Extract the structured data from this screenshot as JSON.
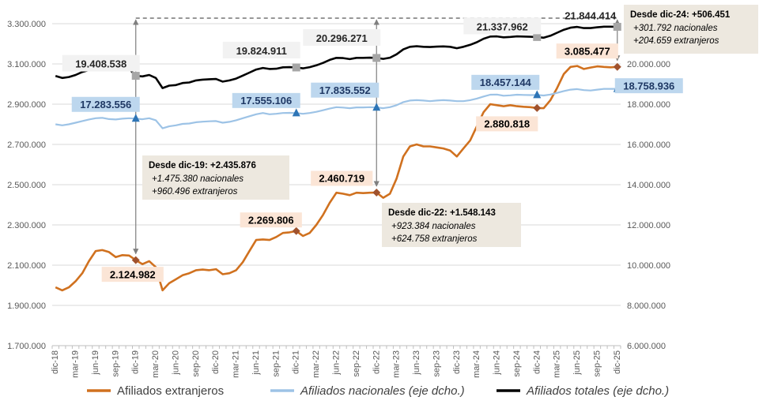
{
  "chart_data": {
    "type": "line",
    "x": [
      "dic-18",
      "ene-19",
      "feb-19",
      "mar-19",
      "abr-19",
      "may-19",
      "jun-19",
      "jul-19",
      "ago-19",
      "sep-19",
      "oct-19",
      "nov-19",
      "dic-19",
      "ene-20",
      "feb-20",
      "mar-20",
      "abr-20",
      "may-20",
      "jun-20",
      "jul-20",
      "ago-20",
      "sep-20",
      "oct-20",
      "nov-20",
      "dic-20",
      "ene-21",
      "feb-21",
      "mar-21",
      "abr-21",
      "may-21",
      "jun-21",
      "jul-21",
      "ago-21",
      "sep-21",
      "oct-21",
      "nov-21",
      "dic-21",
      "ene-22",
      "feb-22",
      "mar-22",
      "abr-22",
      "may-22",
      "jun-22",
      "jul-22",
      "ago-22",
      "sep-22",
      "oct-22",
      "nov-22",
      "dic-22",
      "ene-23",
      "feb-23",
      "mar-23",
      "abr-23",
      "may-23",
      "jun-23",
      "jul-23",
      "ago-23",
      "sep-23",
      "oct-23",
      "nov-23",
      "dic-23",
      "ene-24",
      "feb-24",
      "mar-24",
      "abr-24",
      "may-24",
      "jun-24",
      "jul-24",
      "ago-24",
      "sep-24",
      "oct-24",
      "nov-24",
      "dic-24",
      "ene-25",
      "feb-25",
      "mar-25",
      "abr-25",
      "may-25",
      "jun-25",
      "jul-25",
      "ago-25",
      "sep-25",
      "oct-25",
      "nov-25",
      "dic-25"
    ],
    "x_tick_labels": [
      "dic-18",
      "mar-19",
      "jun-19",
      "sep-19",
      "dic-19",
      "mar-20",
      "jun-20",
      "sep-20",
      "dic-20",
      "mar-21",
      "jun-21",
      "sep-21",
      "dic-21",
      "mar-22",
      "jun-22",
      "sep-22",
      "dic-22",
      "mar-23",
      "jun-23",
      "sep-23",
      "dic-23",
      "mar-24",
      "jun-24",
      "sep-24",
      "dic-24",
      "mar-25",
      "jun-25",
      "sep-25",
      "dic-25"
    ],
    "y_left": {
      "min": 1700000,
      "max": 3300000,
      "ticks": [
        "1.700.000",
        "1.900.000",
        "2.100.000",
        "2.300.000",
        "2.500.000",
        "2.700.000",
        "2.900.000",
        "3.100.000",
        "3.300.000"
      ]
    },
    "y_right": {
      "min": 6000000,
      "max": 22000000,
      "ticks": [
        "6.000.000",
        "8.000.000",
        "10.000.000",
        "12.000.000",
        "14.000.000",
        "16.000.000",
        "18.000.000",
        "20.000.000"
      ]
    },
    "grid": true,
    "legend_position": "bottom",
    "series": [
      {
        "name": "Afiliados extranjeros",
        "axis": "left",
        "color": "#d0711f",
        "values": [
          1990000,
          1975000,
          1990000,
          2020000,
          2060000,
          2120000,
          2170000,
          2175000,
          2165000,
          2140000,
          2150000,
          2148000,
          2124982,
          2105000,
          2120000,
          2090000,
          1975000,
          2010000,
          2030000,
          2050000,
          2060000,
          2075000,
          2078000,
          2075000,
          2080000,
          2055000,
          2060000,
          2075000,
          2115000,
          2170000,
          2225000,
          2228000,
          2225000,
          2240000,
          2260000,
          2263000,
          2269806,
          2245000,
          2260000,
          2300000,
          2350000,
          2410000,
          2460000,
          2455000,
          2448000,
          2460000,
          2458000,
          2460000,
          2460719,
          2435000,
          2455000,
          2530000,
          2640000,
          2690000,
          2700000,
          2690000,
          2690000,
          2685000,
          2680000,
          2670000,
          2640000,
          2680000,
          2720000,
          2790000,
          2860000,
          2900000,
          2895000,
          2890000,
          2895000,
          2890000,
          2887000,
          2885000,
          2880818,
          2880000,
          2920000,
          2980000,
          3050000,
          3085000,
          3090000,
          3075000,
          3082000,
          3088000,
          3085000,
          3083000,
          3085477
        ]
      },
      {
        "name": "Afiliados nacionales (eje dcho.)",
        "axis": "right",
        "color": "#9dc3e6",
        "values": [
          17000000,
          16950000,
          17000000,
          17080000,
          17160000,
          17240000,
          17300000,
          17320000,
          17260000,
          17240000,
          17280000,
          17300000,
          17283556,
          17250000,
          17300000,
          17200000,
          16800000,
          16900000,
          16950000,
          17020000,
          17040000,
          17100000,
          17130000,
          17150000,
          17160000,
          17080000,
          17120000,
          17200000,
          17300000,
          17400000,
          17500000,
          17560000,
          17500000,
          17520000,
          17560000,
          17570000,
          17555106,
          17520000,
          17560000,
          17620000,
          17700000,
          17780000,
          17850000,
          17830000,
          17800000,
          17840000,
          17840000,
          17850000,
          17835552,
          17800000,
          17850000,
          17950000,
          18100000,
          18180000,
          18200000,
          18180000,
          18150000,
          18180000,
          18200000,
          18180000,
          18150000,
          18150000,
          18200000,
          18280000,
          18380000,
          18470000,
          18480000,
          18420000,
          18440000,
          18470000,
          18460000,
          18450000,
          18457144,
          18430000,
          18480000,
          18560000,
          18650000,
          18720000,
          18750000,
          18700000,
          18680000,
          18720000,
          18760000,
          18760000,
          18758936
        ]
      },
      {
        "name": "Afiliados totales (eje dcho.)",
        "axis": "right",
        "color": "#000000",
        "values": [
          19400000,
          19300000,
          19350000,
          19450000,
          19600000,
          19700000,
          19800000,
          19820000,
          19750000,
          19700000,
          19750000,
          19760000,
          19408538,
          19380000,
          19450000,
          19300000,
          18800000,
          18920000,
          18950000,
          19050000,
          19080000,
          19180000,
          19220000,
          19240000,
          19250000,
          19120000,
          19180000,
          19270000,
          19420000,
          19570000,
          19720000,
          19800000,
          19750000,
          19760000,
          19830000,
          19840000,
          19824911,
          19780000,
          19840000,
          19930000,
          20050000,
          20200000,
          20300000,
          20290000,
          20240000,
          20300000,
          20300000,
          20310000,
          20296271,
          20250000,
          20310000,
          20480000,
          20720000,
          20850000,
          20880000,
          20850000,
          20840000,
          20860000,
          20870000,
          20850000,
          20780000,
          20850000,
          20950000,
          21080000,
          21250000,
          21360000,
          21370000,
          21320000,
          21340000,
          21370000,
          21360000,
          21350000,
          21337962,
          21300000,
          21400000,
          21550000,
          21700000,
          21800000,
          21840000,
          21780000,
          21780000,
          21820000,
          21850000,
          21850000,
          21844414
        ]
      }
    ],
    "data_labels": [
      {
        "series": 0,
        "index": 12,
        "text": "2.124.982"
      },
      {
        "series": 0,
        "index": 36,
        "text": "2.269.806"
      },
      {
        "series": 0,
        "index": 48,
        "text": "2.460.719"
      },
      {
        "series": 0,
        "index": 72,
        "text": "2.880.818"
      },
      {
        "series": 0,
        "index": 84,
        "text": "3.085.477"
      },
      {
        "series": 1,
        "index": 12,
        "text": "17.283.556"
      },
      {
        "series": 1,
        "index": 36,
        "text": "17.555.106"
      },
      {
        "series": 1,
        "index": 48,
        "text": "17.835.552"
      },
      {
        "series": 1,
        "index": 72,
        "text": "18.457.144"
      },
      {
        "series": 1,
        "index": 84,
        "text": "18.758.936"
      },
      {
        "series": 2,
        "index": 12,
        "text": "19.408.538"
      },
      {
        "series": 2,
        "index": 36,
        "text": "19.824.911"
      },
      {
        "series": 2,
        "index": 48,
        "text": "20.296.271"
      },
      {
        "series": 2,
        "index": 72,
        "text": "21.337.962"
      },
      {
        "series": 2,
        "index": 84,
        "text": "21.844.414"
      }
    ],
    "annotations": [
      {
        "from_index": 12,
        "title": "Desde dic-19: +2.435.876",
        "lines": [
          "+1.475.380 nacionales",
          "+960.496 extranjeros"
        ]
      },
      {
        "from_index": 48,
        "title": "Desde dic-22: +1.548.143",
        "lines": [
          "+923.384 nacionales",
          "+624.758 extranjeros"
        ]
      },
      {
        "from_index": 84,
        "title": "Desde dic-24: +506.451",
        "lines": [
          "+301.792 nacionales",
          "+204.659 extranjeros"
        ]
      }
    ]
  }
}
